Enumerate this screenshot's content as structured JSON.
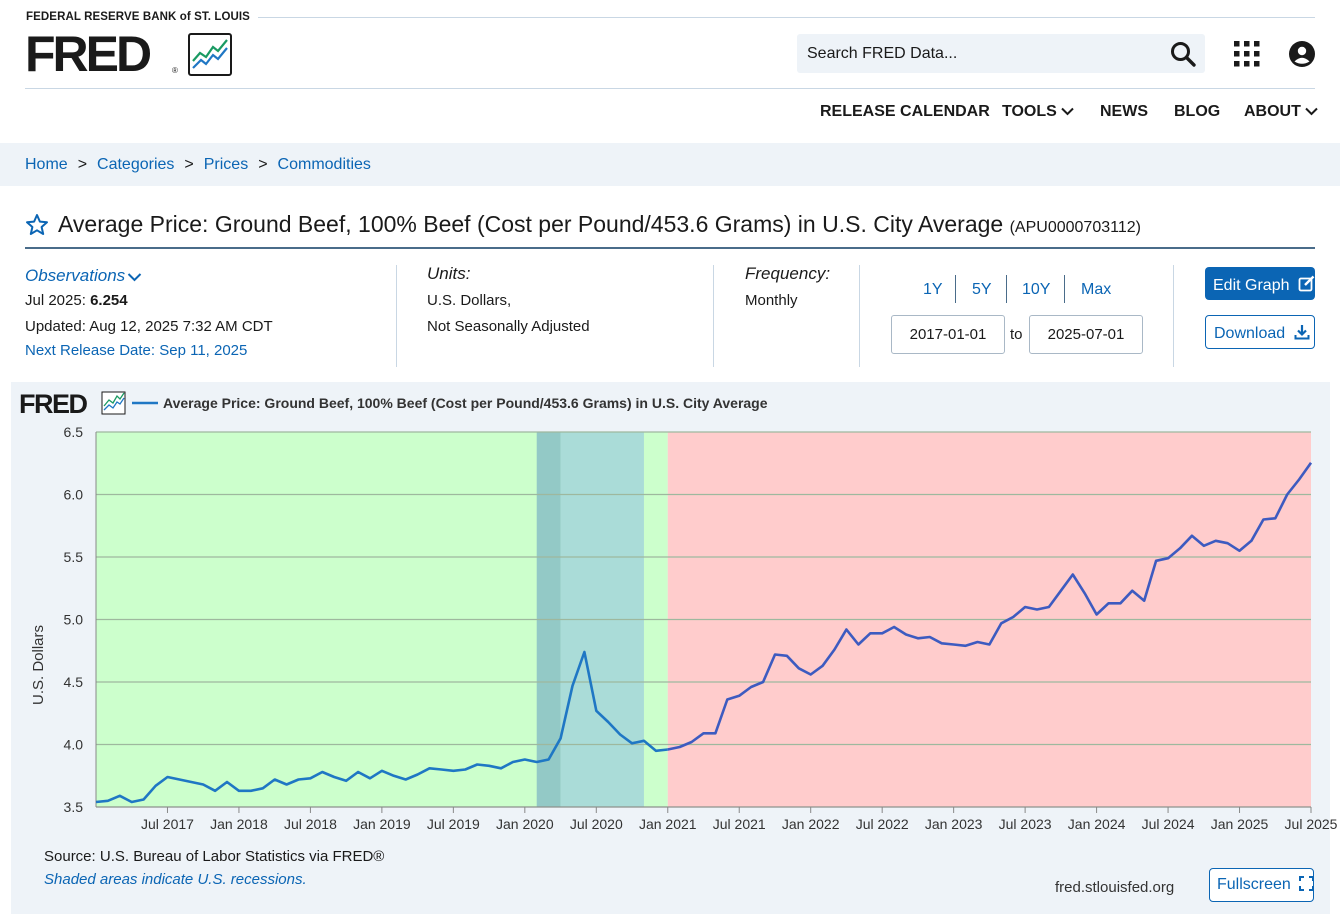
{
  "header": {
    "org_name": "FEDERAL RESERVE BANK of ST. LOUIS",
    "logo_text": "FRED",
    "logo_reg": "®",
    "search_placeholder": "Search FRED Data...",
    "icons": [
      "search-icon",
      "apps-grid-icon",
      "user-account-icon",
      "chart-line-icon"
    ]
  },
  "nav": {
    "release_calendar": "RELEASE CALENDAR",
    "tools": "TOOLS",
    "news": "NEWS",
    "blog": "BLOG",
    "about": "ABOUT"
  },
  "breadcrumb": {
    "home": "Home",
    "categories": "Categories",
    "prices": "Prices",
    "commodities": "Commodities",
    "separator": ">"
  },
  "series": {
    "title": "Average Price: Ground Beef, 100% Beef (Cost per Pound/453.6 Grams) in U.S. City Average",
    "id": "(APU0000703112)"
  },
  "meta": {
    "observations_label": "Observations",
    "obs_date": "Jul 2025:",
    "obs_value": "6.254",
    "updated": "Updated: Aug 12, 2025 7:32 AM CDT",
    "next_release": "Next Release Date: Sep 11, 2025",
    "units_label": "Units:",
    "units_line1": "U.S. Dollars,",
    "units_line2": "Not Seasonally Adjusted",
    "frequency_label": "Frequency:",
    "frequency_value": "Monthly"
  },
  "controls": {
    "range_1y": "1Y",
    "range_5y": "5Y",
    "range_10y": "10Y",
    "range_max": "Max",
    "start_date": "2017-01-01",
    "end_date": "2025-07-01",
    "to_label": "to",
    "edit_graph": "Edit Graph",
    "download": "Download",
    "fullscreen": "Fullscreen"
  },
  "footer": {
    "source": "Source: U.S. Bureau of Labor Statistics via FRED®",
    "recession_note": "Shaded areas indicate U.S. recessions.",
    "site": "fred.stlouisfed.org"
  },
  "colors": {
    "accent": "#0b65b4",
    "line": "#1f77c4",
    "line_late": "#3d5bc0",
    "green_zone": "#ccffcc",
    "red_zone": "#ffcccc",
    "recession": "#8fd2d2"
  },
  "chart_data": {
    "type": "line",
    "legend_label": "Average Price: Ground Beef, 100% Beef (Cost per Pound/453.6 Grams) in U.S. City Average",
    "ylabel": "U.S. Dollars",
    "xlabel": "",
    "ylim": [
      3.5,
      6.5
    ],
    "xlim": [
      "2017-01",
      "2025-07"
    ],
    "grid": true,
    "y_ticks": [
      "3.5",
      "4.0",
      "4.5",
      "5.0",
      "5.5",
      "6.0",
      "6.5"
    ],
    "x_tick_labels": [
      "Jul 2017",
      "Jan 2018",
      "Jul 2018",
      "Jan 2019",
      "Jul 2019",
      "Jan 2020",
      "Jul 2020",
      "Jan 2021",
      "Jul 2021",
      "Jan 2022",
      "Jul 2022",
      "Jan 2023",
      "Jul 2023",
      "Jan 2024",
      "Jul 2024",
      "Jan 2025",
      "Jul 2025"
    ],
    "shaded_regions": [
      {
        "from": "2017-01",
        "to": "2021-01",
        "color": "green"
      },
      {
        "from": "2021-01",
        "to": "2025-07",
        "color": "red"
      },
      {
        "from": "2020-02",
        "to": "2020-04",
        "color": "recession"
      },
      {
        "from": "2020-04",
        "to": "2020-11",
        "color": "recession-light"
      }
    ],
    "series": [
      {
        "name": "Average Price: Ground Beef, 100% Beef (Cost per Pound/453.6 Grams) in U.S. City Average",
        "start": "2017-01",
        "values": [
          3.54,
          3.55,
          3.59,
          3.54,
          3.56,
          3.67,
          3.74,
          3.72,
          3.7,
          3.68,
          3.63,
          3.7,
          3.63,
          3.63,
          3.65,
          3.72,
          3.68,
          3.72,
          3.73,
          3.78,
          3.74,
          3.71,
          3.78,
          3.73,
          3.79,
          3.75,
          3.72,
          3.76,
          3.81,
          3.8,
          3.79,
          3.8,
          3.84,
          3.83,
          3.81,
          3.86,
          3.88,
          3.86,
          3.88,
          4.05,
          4.47,
          4.74,
          4.27,
          4.18,
          4.08,
          4.01,
          4.03,
          3.95,
          3.96,
          3.98,
          4.02,
          4.09,
          4.09,
          4.36,
          4.39,
          4.46,
          4.5,
          4.72,
          4.71,
          4.61,
          4.56,
          4.63,
          4.76,
          4.92,
          4.8,
          4.89,
          4.89,
          4.94,
          4.88,
          4.85,
          4.86,
          4.81,
          4.8,
          4.79,
          4.82,
          4.8,
          4.97,
          5.02,
          5.1,
          5.08,
          5.1,
          5.23,
          5.36,
          5.21,
          5.04,
          5.13,
          5.13,
          5.23,
          5.15,
          5.47,
          5.49,
          5.57,
          5.67,
          5.59,
          5.63,
          5.61,
          5.55,
          5.63,
          5.8,
          5.81,
          6.0,
          6.12,
          6.254
        ]
      }
    ]
  }
}
